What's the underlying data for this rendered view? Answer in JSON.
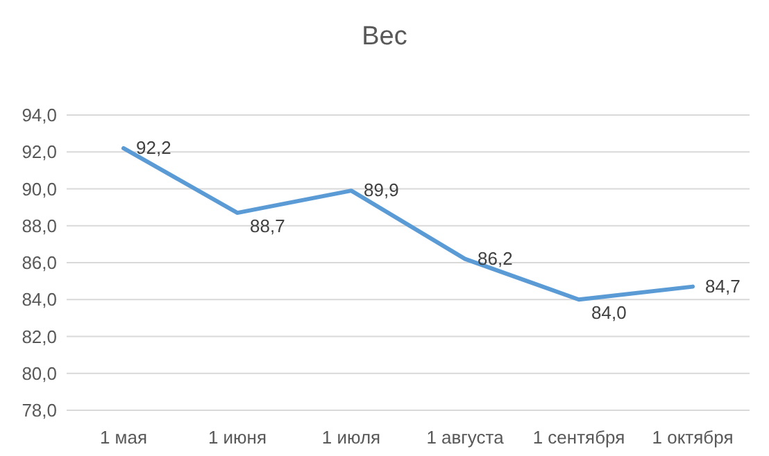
{
  "chart_data": {
    "type": "line",
    "title": "Вес",
    "categories": [
      "1 мая",
      "1 июня",
      "1 июля",
      "1 августа",
      "1 сентября",
      "1 октября"
    ],
    "series": [
      {
        "color": "#5b9bd5",
        "values": [
          92.2,
          88.7,
          89.9,
          86.2,
          84.0,
          84.7
        ],
        "value_labels": [
          "92,2",
          "88,7",
          "89,9",
          "86,2",
          "84,0",
          "84,7"
        ]
      }
    ],
    "ylim": [
      78,
      94
    ],
    "yticks": [
      {
        "value": 78,
        "label": "78,0"
      },
      {
        "value": 80,
        "label": "80,0"
      },
      {
        "value": 82,
        "label": "82,0"
      },
      {
        "value": 84,
        "label": "84,0"
      },
      {
        "value": 86,
        "label": "86,0"
      },
      {
        "value": 88,
        "label": "88,0"
      },
      {
        "value": 90,
        "label": "90,0"
      },
      {
        "value": 92,
        "label": "92,0"
      },
      {
        "value": 94,
        "label": "94,0"
      }
    ],
    "grid": "y",
    "marker": "none",
    "line_style": "solid"
  }
}
